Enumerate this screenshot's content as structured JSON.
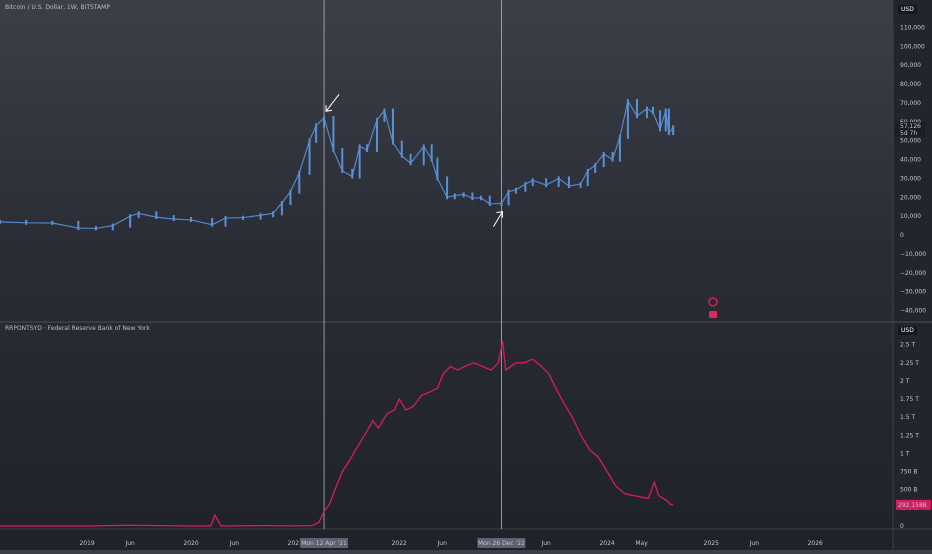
{
  "chart_data": [
    {
      "type": "bar",
      "title": "Bitcoin / U.S. Dollar, 1W, BITSTAMP",
      "currency": "USD",
      "x_date_range": [
        "2018-03-01",
        "2026-10-01"
      ],
      "ylim": [
        -45000,
        115000
      ],
      "y_ticks": [
        {
          "value": 110000,
          "label": "110,000"
        },
        {
          "value": 100000,
          "label": "100,000"
        },
        {
          "value": 90000,
          "label": "90,000"
        },
        {
          "value": 80000,
          "label": "80,000"
        },
        {
          "value": 70000,
          "label": "70,000"
        },
        {
          "value": 60000,
          "label": "60,000"
        },
        {
          "value": 50000,
          "label": "50,000"
        },
        {
          "value": 40000,
          "label": "40,000"
        },
        {
          "value": 30000,
          "label": "30,000"
        },
        {
          "value": 20000,
          "label": "20,000"
        },
        {
          "value": 10000,
          "label": "10,000"
        },
        {
          "value": 0,
          "label": "0"
        },
        {
          "value": -10000,
          "label": "−10,000"
        },
        {
          "value": -20000,
          "label": "−20,000"
        },
        {
          "value": -30000,
          "label": "−30,000"
        },
        {
          "value": -40000,
          "label": "−40,000"
        }
      ],
      "last_price": {
        "value": 57126,
        "label": "57,126",
        "countdown": "5d 7h"
      },
      "bar_color": "#5b8fd6",
      "x": [
        "2018-03-01",
        "2018-06-01",
        "2018-09-01",
        "2018-12-01",
        "2019-02-01",
        "2019-04-01",
        "2019-06-01",
        "2019-07-01",
        "2019-09-01",
        "2019-11-01",
        "2020-01-01",
        "2020-03-15",
        "2020-05-01",
        "2020-07-01",
        "2020-09-01",
        "2020-10-15",
        "2020-11-15",
        "2020-12-15",
        "2021-01-15",
        "2021-02-20",
        "2021-03-15",
        "2021-04-12",
        "2021-05-15",
        "2021-06-15",
        "2021-07-20",
        "2021-08-15",
        "2021-09-10",
        "2021-10-15",
        "2021-11-10",
        "2021-12-10",
        "2022-01-10",
        "2022-02-10",
        "2022-03-28",
        "2022-04-25",
        "2022-05-15",
        "2022-06-18",
        "2022-07-15",
        "2022-08-15",
        "2022-09-15",
        "2022-10-15",
        "2022-11-15",
        "2022-12-26",
        "2023-01-20",
        "2023-02-15",
        "2023-03-20",
        "2023-04-15",
        "2023-06-01",
        "2023-07-15",
        "2023-08-20",
        "2023-09-30",
        "2023-10-25",
        "2023-11-20",
        "2023-12-20",
        "2024-01-20",
        "2024-02-15",
        "2024-03-14",
        "2024-04-15",
        "2024-05-20",
        "2024-06-10",
        "2024-07-05",
        "2024-07-25",
        "2024-08-05",
        "2024-08-20"
      ],
      "values": [
        7000,
        6500,
        6400,
        3700,
        3500,
        5000,
        10000,
        11500,
        9500,
        8500,
        8000,
        5500,
        9000,
        9200,
        10500,
        11500,
        17000,
        23000,
        33000,
        50000,
        58000,
        62000,
        45000,
        34000,
        31000,
        47000,
        45000,
        61000,
        66000,
        49000,
        42000,
        38000,
        47000,
        40000,
        30000,
        20000,
        21000,
        21500,
        19500,
        19800,
        16500,
        16700,
        23000,
        24000,
        27000,
        29000,
        26500,
        30000,
        26000,
        27000,
        34000,
        37000,
        43000,
        40000,
        52000,
        71000,
        63000,
        67000,
        65000,
        56000,
        66000,
        54000,
        57126
      ]
    },
    {
      "type": "line",
      "title": "RRPONTSYD · Federal Reserve Bank of New York",
      "currency": "USD",
      "series_color": "#d81b60",
      "ylim": [
        0,
        2.62
      ],
      "y_ticks": [
        {
          "value": 2.5,
          "label": "2.5 T"
        },
        {
          "value": 2.25,
          "label": "2.25 T"
        },
        {
          "value": 2.0,
          "label": "2 T"
        },
        {
          "value": 1.75,
          "label": "1.75 T"
        },
        {
          "value": 1.5,
          "label": "1.5 T"
        },
        {
          "value": 1.25,
          "label": "1.25 T"
        },
        {
          "value": 1.0,
          "label": "1 T"
        },
        {
          "value": 0.75,
          "label": "750 B"
        },
        {
          "value": 0.5,
          "label": "500 B"
        },
        {
          "value": 0.25,
          "label": "250 B"
        },
        {
          "value": 0,
          "label": "0"
        }
      ],
      "last_value": {
        "value": 0.292,
        "label": "292.158B"
      },
      "x": [
        "2018-03-01",
        "2019-01-01",
        "2019-06-01",
        "2020-01-01",
        "2020-03-10",
        "2020-03-25",
        "2020-04-15",
        "2020-09-01",
        "2021-01-01",
        "2021-03-01",
        "2021-03-25",
        "2021-04-12",
        "2021-05-01",
        "2021-05-20",
        "2021-06-15",
        "2021-07-10",
        "2021-08-01",
        "2021-09-01",
        "2021-09-30",
        "2021-10-20",
        "2021-11-20",
        "2021-12-15",
        "2022-01-01",
        "2022-01-25",
        "2022-02-20",
        "2022-03-20",
        "2022-04-20",
        "2022-05-15",
        "2022-06-05",
        "2022-06-30",
        "2022-07-25",
        "2022-08-20",
        "2022-09-20",
        "2022-10-20",
        "2022-11-20",
        "2022-12-15",
        "2022-12-30",
        "2023-01-10",
        "2023-02-15",
        "2023-03-15",
        "2023-04-15",
        "2023-05-15",
        "2023-06-10",
        "2023-07-05",
        "2023-08-01",
        "2023-09-01",
        "2023-10-01",
        "2023-11-01",
        "2023-12-01",
        "2024-01-01",
        "2024-02-01",
        "2024-03-01",
        "2024-04-01",
        "2024-04-30",
        "2024-05-25",
        "2024-06-15",
        "2024-06-30",
        "2024-07-25",
        "2024-08-10",
        "2024-08-20"
      ],
      "values": [
        0.0,
        0.0,
        0.01,
        0.0,
        0.0,
        0.15,
        0.0,
        0.005,
        0.002,
        0.005,
        0.05,
        0.2,
        0.3,
        0.5,
        0.75,
        0.9,
        1.05,
        1.25,
        1.45,
        1.35,
        1.55,
        1.6,
        1.75,
        1.6,
        1.65,
        1.8,
        1.85,
        1.9,
        2.1,
        2.2,
        2.15,
        2.2,
        2.25,
        2.2,
        2.15,
        2.25,
        2.55,
        2.15,
        2.25,
        2.25,
        2.3,
        2.2,
        2.1,
        1.9,
        1.7,
        1.5,
        1.25,
        1.05,
        0.95,
        0.75,
        0.55,
        0.45,
        0.42,
        0.4,
        0.38,
        0.6,
        0.42,
        0.36,
        0.3,
        0.29
      ]
    }
  ],
  "x_axis": {
    "ticks": [
      {
        "date": "2019-01-01",
        "label": "2019"
      },
      {
        "date": "2019-06-01",
        "label": "Jun"
      },
      {
        "date": "2020-01-01",
        "label": "2020"
      },
      {
        "date": "2020-06-01",
        "label": "Jun"
      },
      {
        "date": "2021-01-01",
        "label": "2021"
      },
      {
        "date": "2022-01-01",
        "label": "2022"
      },
      {
        "date": "2022-06-01",
        "label": "Jun"
      },
      {
        "date": "2023-06-01",
        "label": "Jun"
      },
      {
        "date": "2024-01-01",
        "label": "2024"
      },
      {
        "date": "2024-05-01",
        "label": "May"
      },
      {
        "date": "2025-01-01",
        "label": "2025"
      },
      {
        "date": "2025-06-01",
        "label": "Jun"
      },
      {
        "date": "2026-01-01",
        "label": "2026"
      }
    ],
    "crosshair_markers": [
      {
        "date": "2021-04-12",
        "label": "Mon 12 Apr '21"
      },
      {
        "date": "2022-12-26",
        "label": "Mon 26 Dec '22"
      }
    ]
  },
  "icons": [
    "reload-icon",
    "calendar-event-icon"
  ]
}
